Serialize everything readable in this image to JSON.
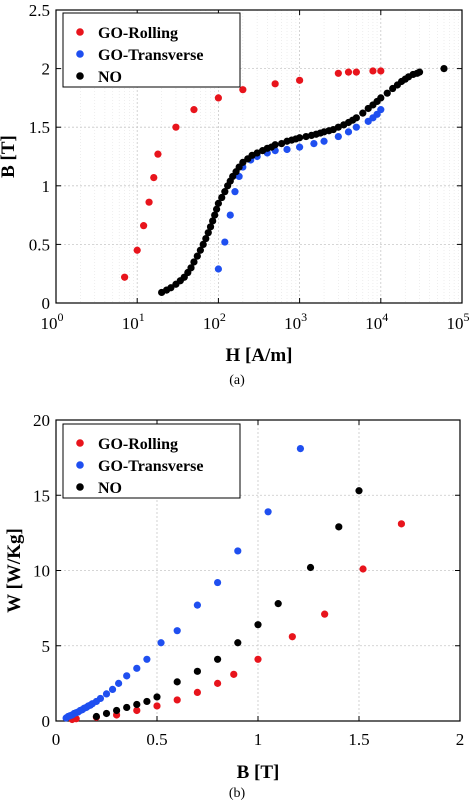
{
  "chart_data": [
    {
      "type": "scatter",
      "panel_label": "(a)",
      "xlabel": "H [A/m]",
      "ylabel": "B [T]",
      "xscale": "log",
      "xlim": [
        1,
        100000
      ],
      "ylim": [
        0,
        2.5
      ],
      "xticks": [
        1,
        10,
        100,
        1000,
        10000,
        100000
      ],
      "xtick_labels": [
        {
          "base": "10",
          "exp": "0"
        },
        {
          "base": "10",
          "exp": "1"
        },
        {
          "base": "10",
          "exp": "2"
        },
        {
          "base": "10",
          "exp": "3"
        },
        {
          "base": "10",
          "exp": "4"
        },
        {
          "base": "10",
          "exp": "5"
        }
      ],
      "yticks": [
        0,
        0.5,
        1,
        1.5,
        2,
        2.5
      ],
      "ytick_labels": [
        "0",
        "0.5",
        "1",
        "1.5",
        "2",
        "2.5"
      ],
      "grid": true,
      "legend_position": "top-left",
      "series": [
        {
          "name": "GO-Rolling",
          "color": "#e8141c",
          "x": [
            7,
            10,
            12,
            14,
            16,
            18,
            30,
            50,
            100,
            200,
            500,
            1000,
            3000,
            4000,
            5000,
            8000,
            10000
          ],
          "y": [
            0.22,
            0.45,
            0.66,
            0.86,
            1.07,
            1.27,
            1.5,
            1.65,
            1.75,
            1.82,
            1.87,
            1.9,
            1.96,
            1.97,
            1.97,
            1.98,
            1.98
          ]
        },
        {
          "name": "GO-Transverse",
          "color": "#1f4ff0",
          "x": [
            100,
            120,
            140,
            160,
            180,
            200,
            250,
            300,
            400,
            500,
            700,
            1000,
            1500,
            2000,
            3000,
            4000,
            5000,
            7000,
            8000,
            9000,
            10000
          ],
          "y": [
            0.29,
            0.52,
            0.75,
            0.95,
            1.08,
            1.16,
            1.22,
            1.25,
            1.28,
            1.3,
            1.31,
            1.33,
            1.36,
            1.38,
            1.42,
            1.46,
            1.5,
            1.55,
            1.58,
            1.61,
            1.65
          ]
        },
        {
          "name": "NO",
          "color": "#000000",
          "x": [
            20,
            23,
            26,
            30,
            34,
            38,
            42,
            46,
            50,
            55,
            60,
            65,
            70,
            75,
            80,
            85,
            90,
            95,
            100,
            110,
            120,
            130,
            140,
            150,
            165,
            180,
            200,
            230,
            260,
            300,
            350,
            400,
            450,
            500,
            600,
            700,
            800,
            900,
            1000,
            1200,
            1400,
            1600,
            1800,
            2000,
            2300,
            2600,
            3000,
            3500,
            4000,
            4500,
            5000,
            6000,
            7000,
            8000,
            9000,
            10000,
            12000,
            14000,
            16000,
            18000,
            20000,
            22000,
            25000,
            28000,
            30000,
            60000
          ],
          "y": [
            0.09,
            0.11,
            0.13,
            0.16,
            0.19,
            0.22,
            0.26,
            0.3,
            0.35,
            0.4,
            0.45,
            0.5,
            0.55,
            0.6,
            0.65,
            0.7,
            0.75,
            0.8,
            0.85,
            0.9,
            0.95,
            1.0,
            1.04,
            1.08,
            1.12,
            1.16,
            1.2,
            1.23,
            1.26,
            1.28,
            1.3,
            1.32,
            1.33,
            1.35,
            1.36,
            1.38,
            1.39,
            1.4,
            1.41,
            1.42,
            1.43,
            1.44,
            1.45,
            1.46,
            1.47,
            1.48,
            1.5,
            1.52,
            1.54,
            1.56,
            1.58,
            1.62,
            1.66,
            1.69,
            1.72,
            1.75,
            1.79,
            1.83,
            1.86,
            1.89,
            1.91,
            1.93,
            1.95,
            1.96,
            1.97,
            2.0
          ]
        }
      ]
    },
    {
      "type": "scatter",
      "panel_label": "(b)",
      "xlabel": "B [T]",
      "ylabel": "W [W/Kg]",
      "xscale": "linear",
      "xlim": [
        0,
        2
      ],
      "ylim": [
        0,
        20
      ],
      "xticks": [
        0,
        0.5,
        1,
        1.5,
        2
      ],
      "xtick_labels": [
        "0",
        "0.5",
        "1",
        "1.5",
        "2"
      ],
      "yticks": [
        0,
        5,
        10,
        15,
        20
      ],
      "ytick_labels": [
        "0",
        "5",
        "10",
        "15",
        "20"
      ],
      "grid": true,
      "legend_position": "top-left",
      "series": [
        {
          "name": "GO-Rolling",
          "color": "#e8141c",
          "x": [
            0.08,
            0.1,
            0.2,
            0.3,
            0.4,
            0.5,
            0.6,
            0.7,
            0.8,
            0.88,
            1.0,
            1.17,
            1.33,
            1.52,
            1.71
          ],
          "y": [
            0.1,
            0.15,
            0.25,
            0.4,
            0.7,
            1.0,
            1.4,
            1.9,
            2.5,
            3.1,
            4.1,
            5.6,
            7.1,
            10.1,
            13.1
          ]
        },
        {
          "name": "GO-Transverse",
          "color": "#1f4ff0",
          "x": [
            0.05,
            0.06,
            0.07,
            0.08,
            0.09,
            0.1,
            0.11,
            0.12,
            0.13,
            0.14,
            0.15,
            0.16,
            0.17,
            0.18,
            0.2,
            0.22,
            0.25,
            0.28,
            0.31,
            0.35,
            0.4,
            0.45,
            0.52,
            0.6,
            0.7,
            0.8,
            0.9,
            1.05,
            1.21
          ],
          "y": [
            0.2,
            0.3,
            0.35,
            0.4,
            0.5,
            0.55,
            0.6,
            0.7,
            0.75,
            0.85,
            0.9,
            1.0,
            1.05,
            1.15,
            1.3,
            1.5,
            1.8,
            2.1,
            2.5,
            3.0,
            3.5,
            4.1,
            5.2,
            6.0,
            7.7,
            9.2,
            11.3,
            13.9,
            18.1
          ]
        },
        {
          "name": "NO",
          "color": "#000000",
          "x": [
            0.2,
            0.25,
            0.3,
            0.35,
            0.4,
            0.45,
            0.5,
            0.6,
            0.7,
            0.8,
            0.9,
            1.0,
            1.1,
            1.26,
            1.4,
            1.5
          ],
          "y": [
            0.3,
            0.5,
            0.7,
            0.9,
            1.1,
            1.3,
            1.6,
            2.6,
            3.3,
            4.1,
            5.2,
            6.4,
            7.8,
            10.2,
            12.9,
            15.3
          ]
        }
      ]
    }
  ]
}
